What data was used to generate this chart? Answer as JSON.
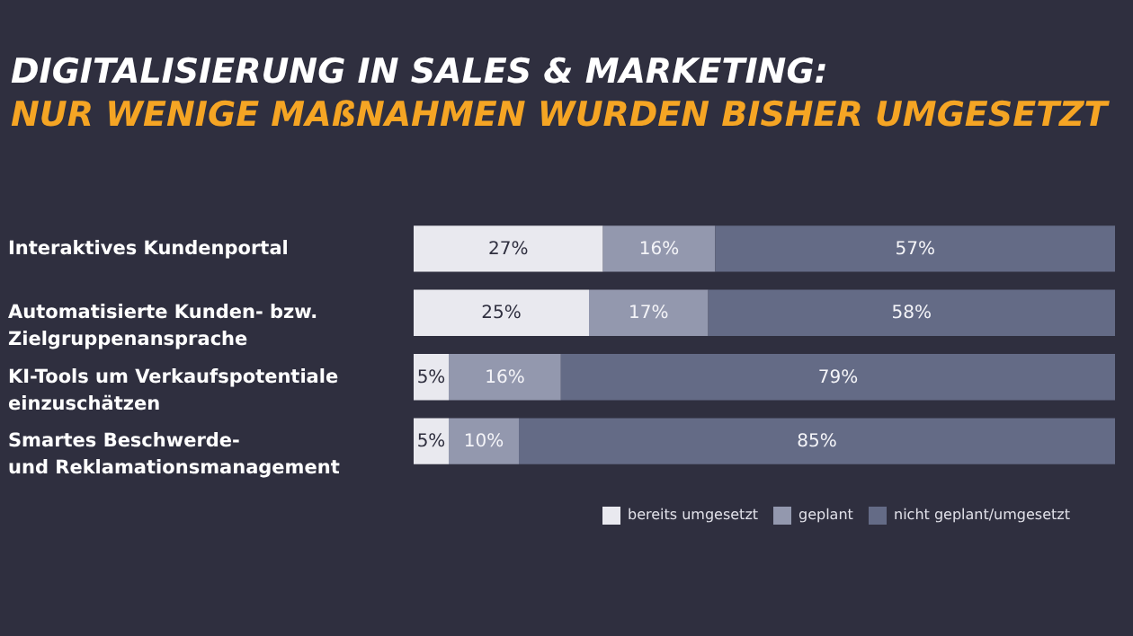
{
  "chart_data": {
    "type": "bar",
    "orientation": "horizontal",
    "stacked": true,
    "legend": "bottom right",
    "title": "DIGITALISIERUNG IN SALES & MARKETING:",
    "subtitle": "NUR WENIGE MAßNAHMEN WURDEN BISHER UMGESETZT",
    "categories": [
      "Interaktives Kundenportal",
      "Automatisierte Kunden- bzw.\nZielgruppenansprache",
      "KI-Tools um Verkaufspotentiale\neinzuschätzen",
      "Smartes Beschwerde-\nund Reklamationsmanagement"
    ],
    "series": [
      {
        "name": "bereits umgesetzt",
        "color": "#e9e9ef",
        "values": [
          27,
          25,
          5,
          5
        ],
        "value_labels": [
          "27%",
          "25%",
          "5%",
          "5%"
        ]
      },
      {
        "name": "geplant",
        "color": "#9398ae",
        "values": [
          16,
          17,
          16,
          10
        ],
        "value_labels": [
          "16%",
          "17%",
          "16%",
          "10%"
        ]
      },
      {
        "name": "nicht geplant/umgesetzt",
        "color": "#646b86",
        "values": [
          57,
          58,
          79,
          85
        ],
        "value_labels": [
          "57%",
          "58%",
          "79%",
          "85%"
        ]
      }
    ]
  }
}
